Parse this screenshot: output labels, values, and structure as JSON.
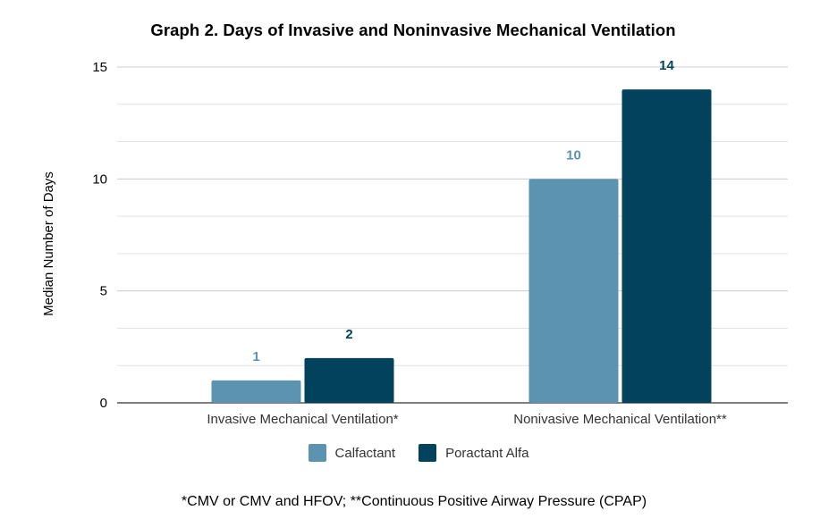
{
  "chart_data": {
    "type": "bar",
    "title": "Graph 2. Days of Invasive and Noninvasive Mechanical Ventilation",
    "xlabel": "",
    "ylabel": "Median Number of Days",
    "categories": [
      "Invasive Mechanical Ventilation*",
      "Nonivasive Mechanical Ventilation**"
    ],
    "series": [
      {
        "name": "Calfactant",
        "values": [
          1,
          10
        ],
        "color": "#5b93b0"
      },
      {
        "name": "Poractant Alfa",
        "values": [
          2,
          14
        ],
        "color": "#02425d"
      }
    ],
    "ylim": [
      0,
      15
    ],
    "yticks": [
      "0",
      "5",
      "10",
      "15"
    ],
    "grid": true,
    "legend_position": "bottom",
    "data_labels": true
  },
  "footnote": "*CMV or CMV and HFOV; **Continuous Positive Airway Pressure (CPAP)"
}
